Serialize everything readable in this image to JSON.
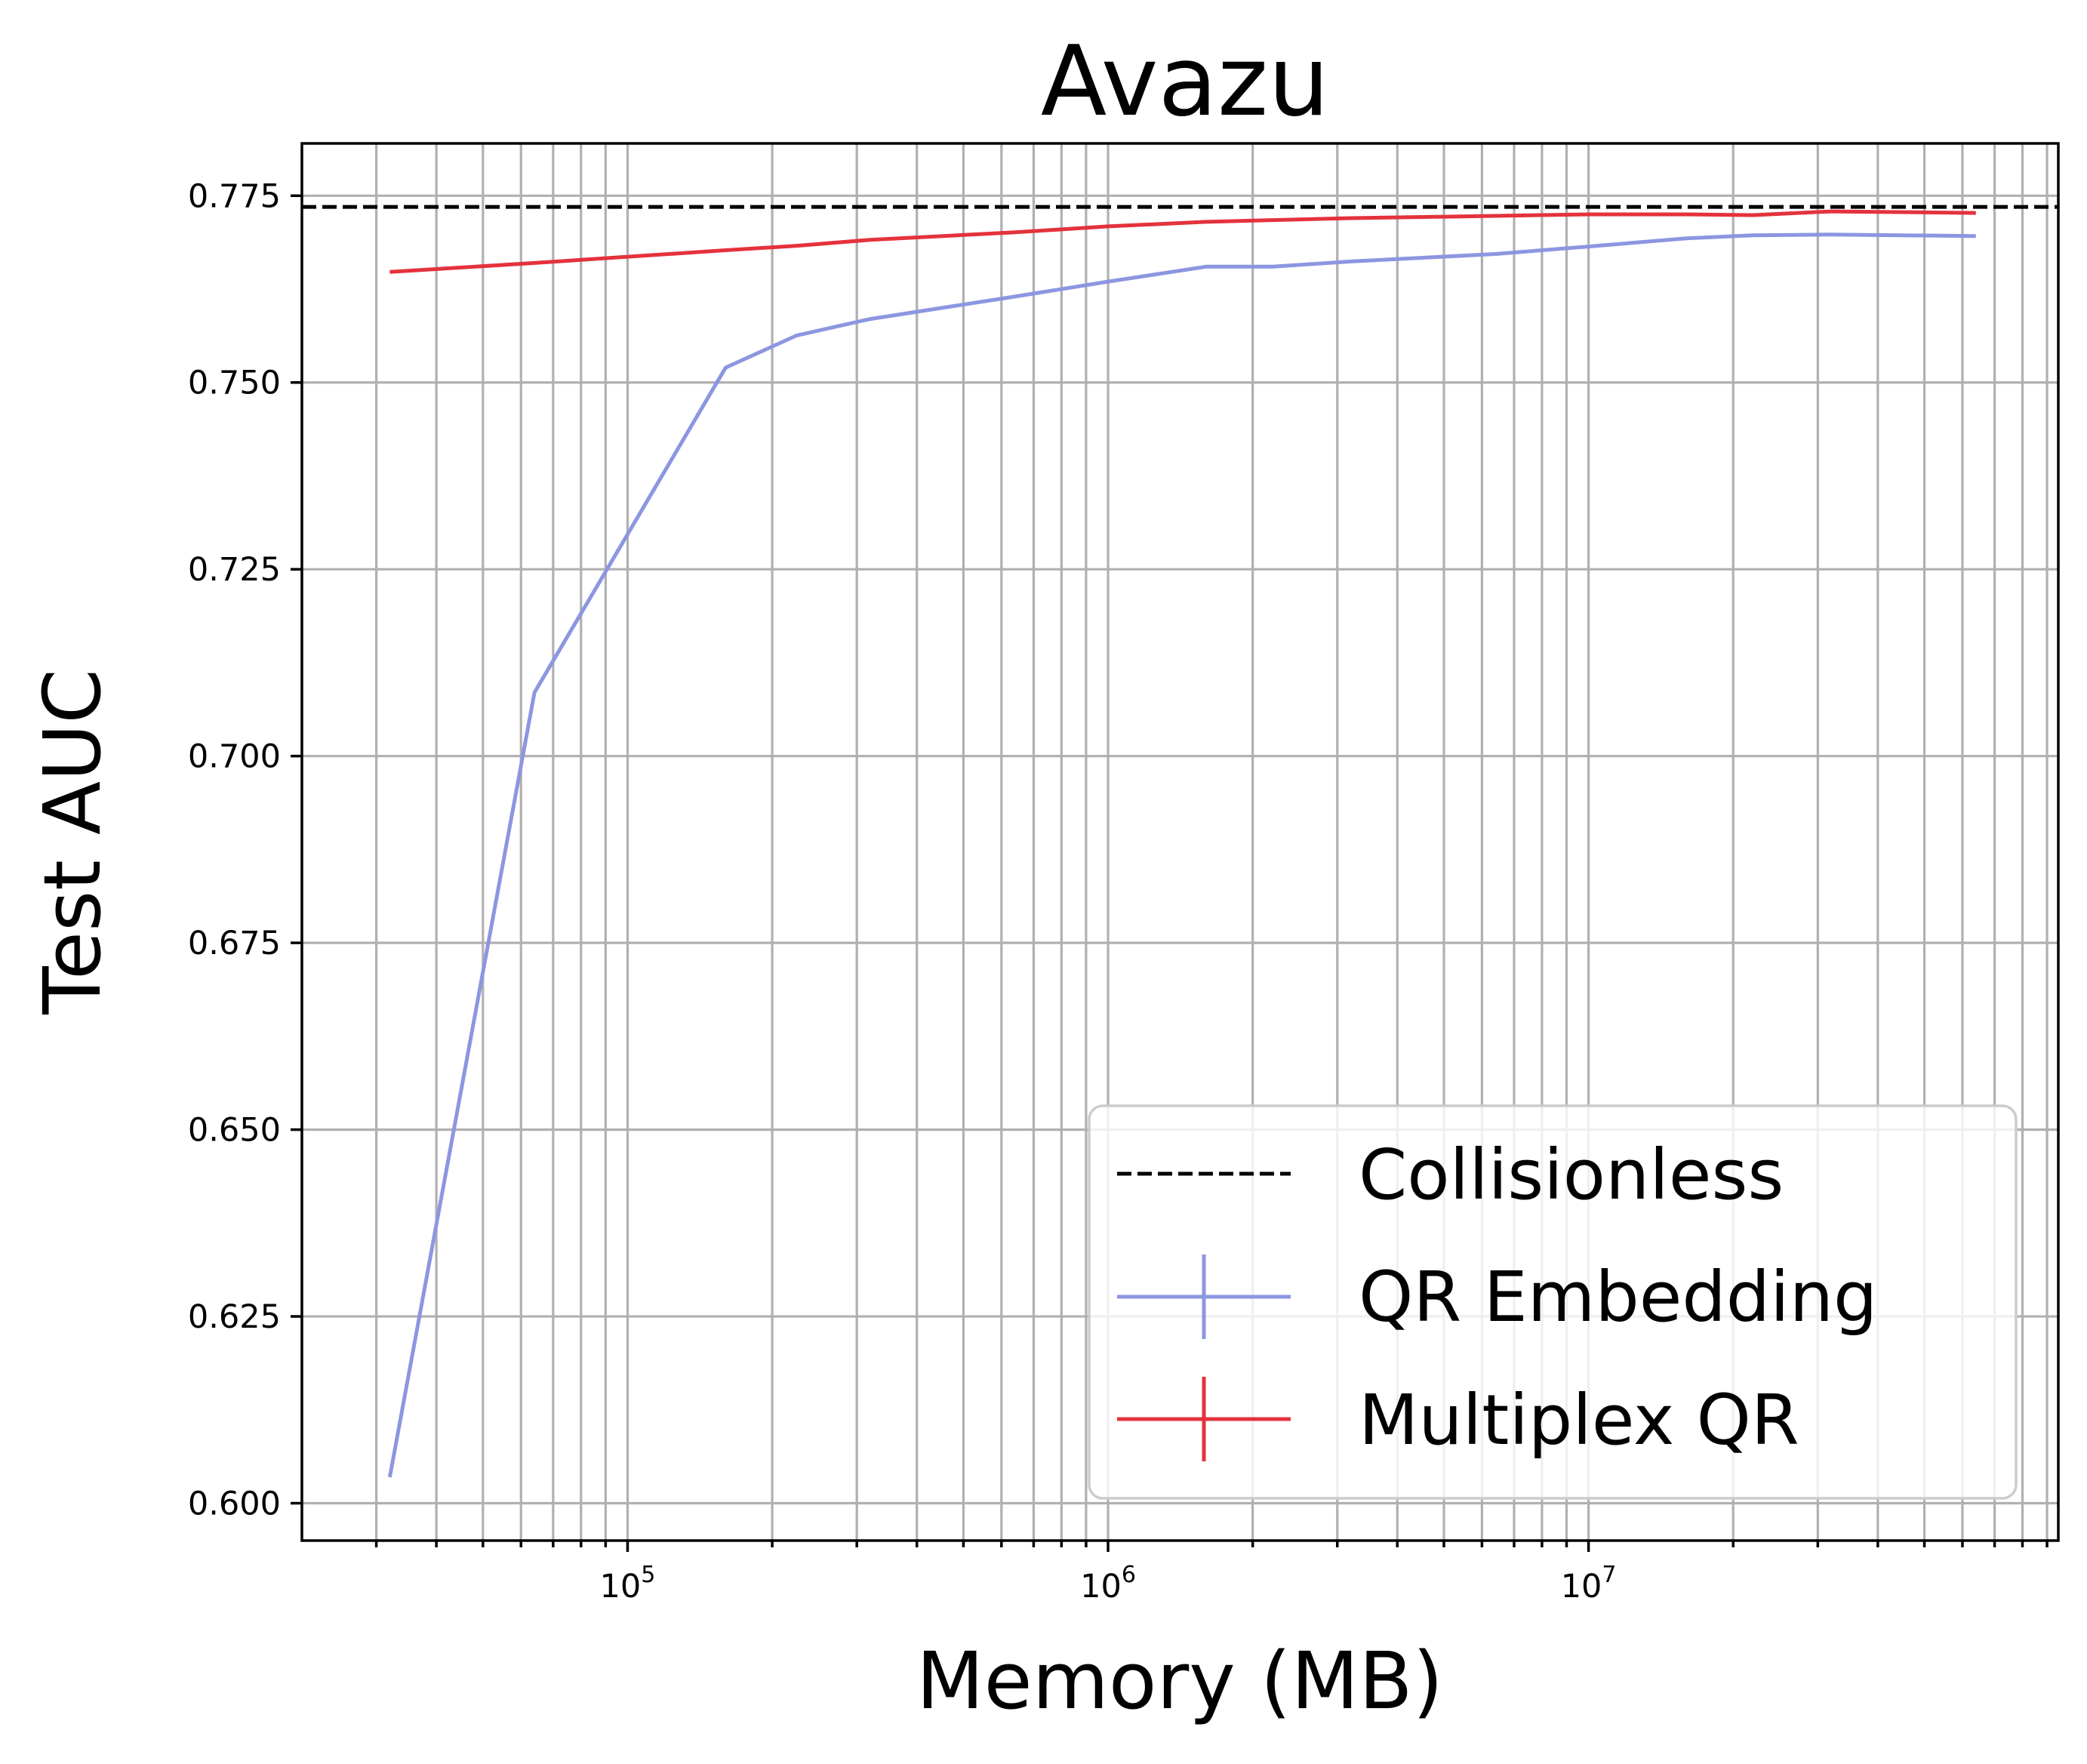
{
  "chart_data": {
    "type": "line",
    "title": "Avazu",
    "xlabel": "Memory (MB)",
    "ylabel": "Test AUC",
    "xscale": "log",
    "xlim": [
      21000,
      95000000
    ],
    "ylim": [
      0.595,
      0.782
    ],
    "grid": true,
    "grid_minor": true,
    "x_major_ticks": [
      {
        "value": 100000,
        "base": "10",
        "exp": "5"
      },
      {
        "value": 1000000,
        "base": "10",
        "exp": "6"
      },
      {
        "value": 10000000,
        "base": "10",
        "exp": "7"
      }
    ],
    "y_ticks": [
      {
        "value": 0.6,
        "label": "0.600"
      },
      {
        "value": 0.625,
        "label": "0.625"
      },
      {
        "value": 0.65,
        "label": "0.650"
      },
      {
        "value": 0.675,
        "label": "0.675"
      },
      {
        "value": 0.7,
        "label": "0.700"
      },
      {
        "value": 0.725,
        "label": "0.725"
      },
      {
        "value": 0.75,
        "label": "0.750"
      },
      {
        "value": 0.775,
        "label": "0.775"
      }
    ],
    "legend_position": "lower-right",
    "reference_line": {
      "name": "Collisionless",
      "y": 0.7735,
      "color": "#000000",
      "style": "dashed"
    },
    "series": [
      {
        "name": "QR Embedding",
        "color": "#8c96e0",
        "x": [
          32000,
          64000,
          160000,
          225000,
          320000,
          640000,
          1000000,
          1600000,
          2200000,
          3200000,
          6400000,
          10000000,
          16000000,
          22000000,
          32000000,
          64000000
        ],
        "y": [
          0.6035,
          0.7085,
          0.752,
          0.7563,
          0.7585,
          0.7615,
          0.7635,
          0.7655,
          0.7655,
          0.7662,
          0.7672,
          0.7682,
          0.7693,
          0.7697,
          0.7698,
          0.7696
        ]
      },
      {
        "name": "Multiplex QR",
        "color": "#e4323c",
        "x": [
          32000,
          64000,
          160000,
          225000,
          320000,
          640000,
          1000000,
          1600000,
          3200000,
          6400000,
          10000000,
          16000000,
          22000000,
          32000000,
          64000000
        ],
        "y": [
          0.7648,
          0.766,
          0.7677,
          0.7683,
          0.7691,
          0.7701,
          0.7709,
          0.7715,
          0.772,
          0.7723,
          0.7725,
          0.7725,
          0.7724,
          0.7729,
          0.7727
        ]
      }
    ]
  }
}
